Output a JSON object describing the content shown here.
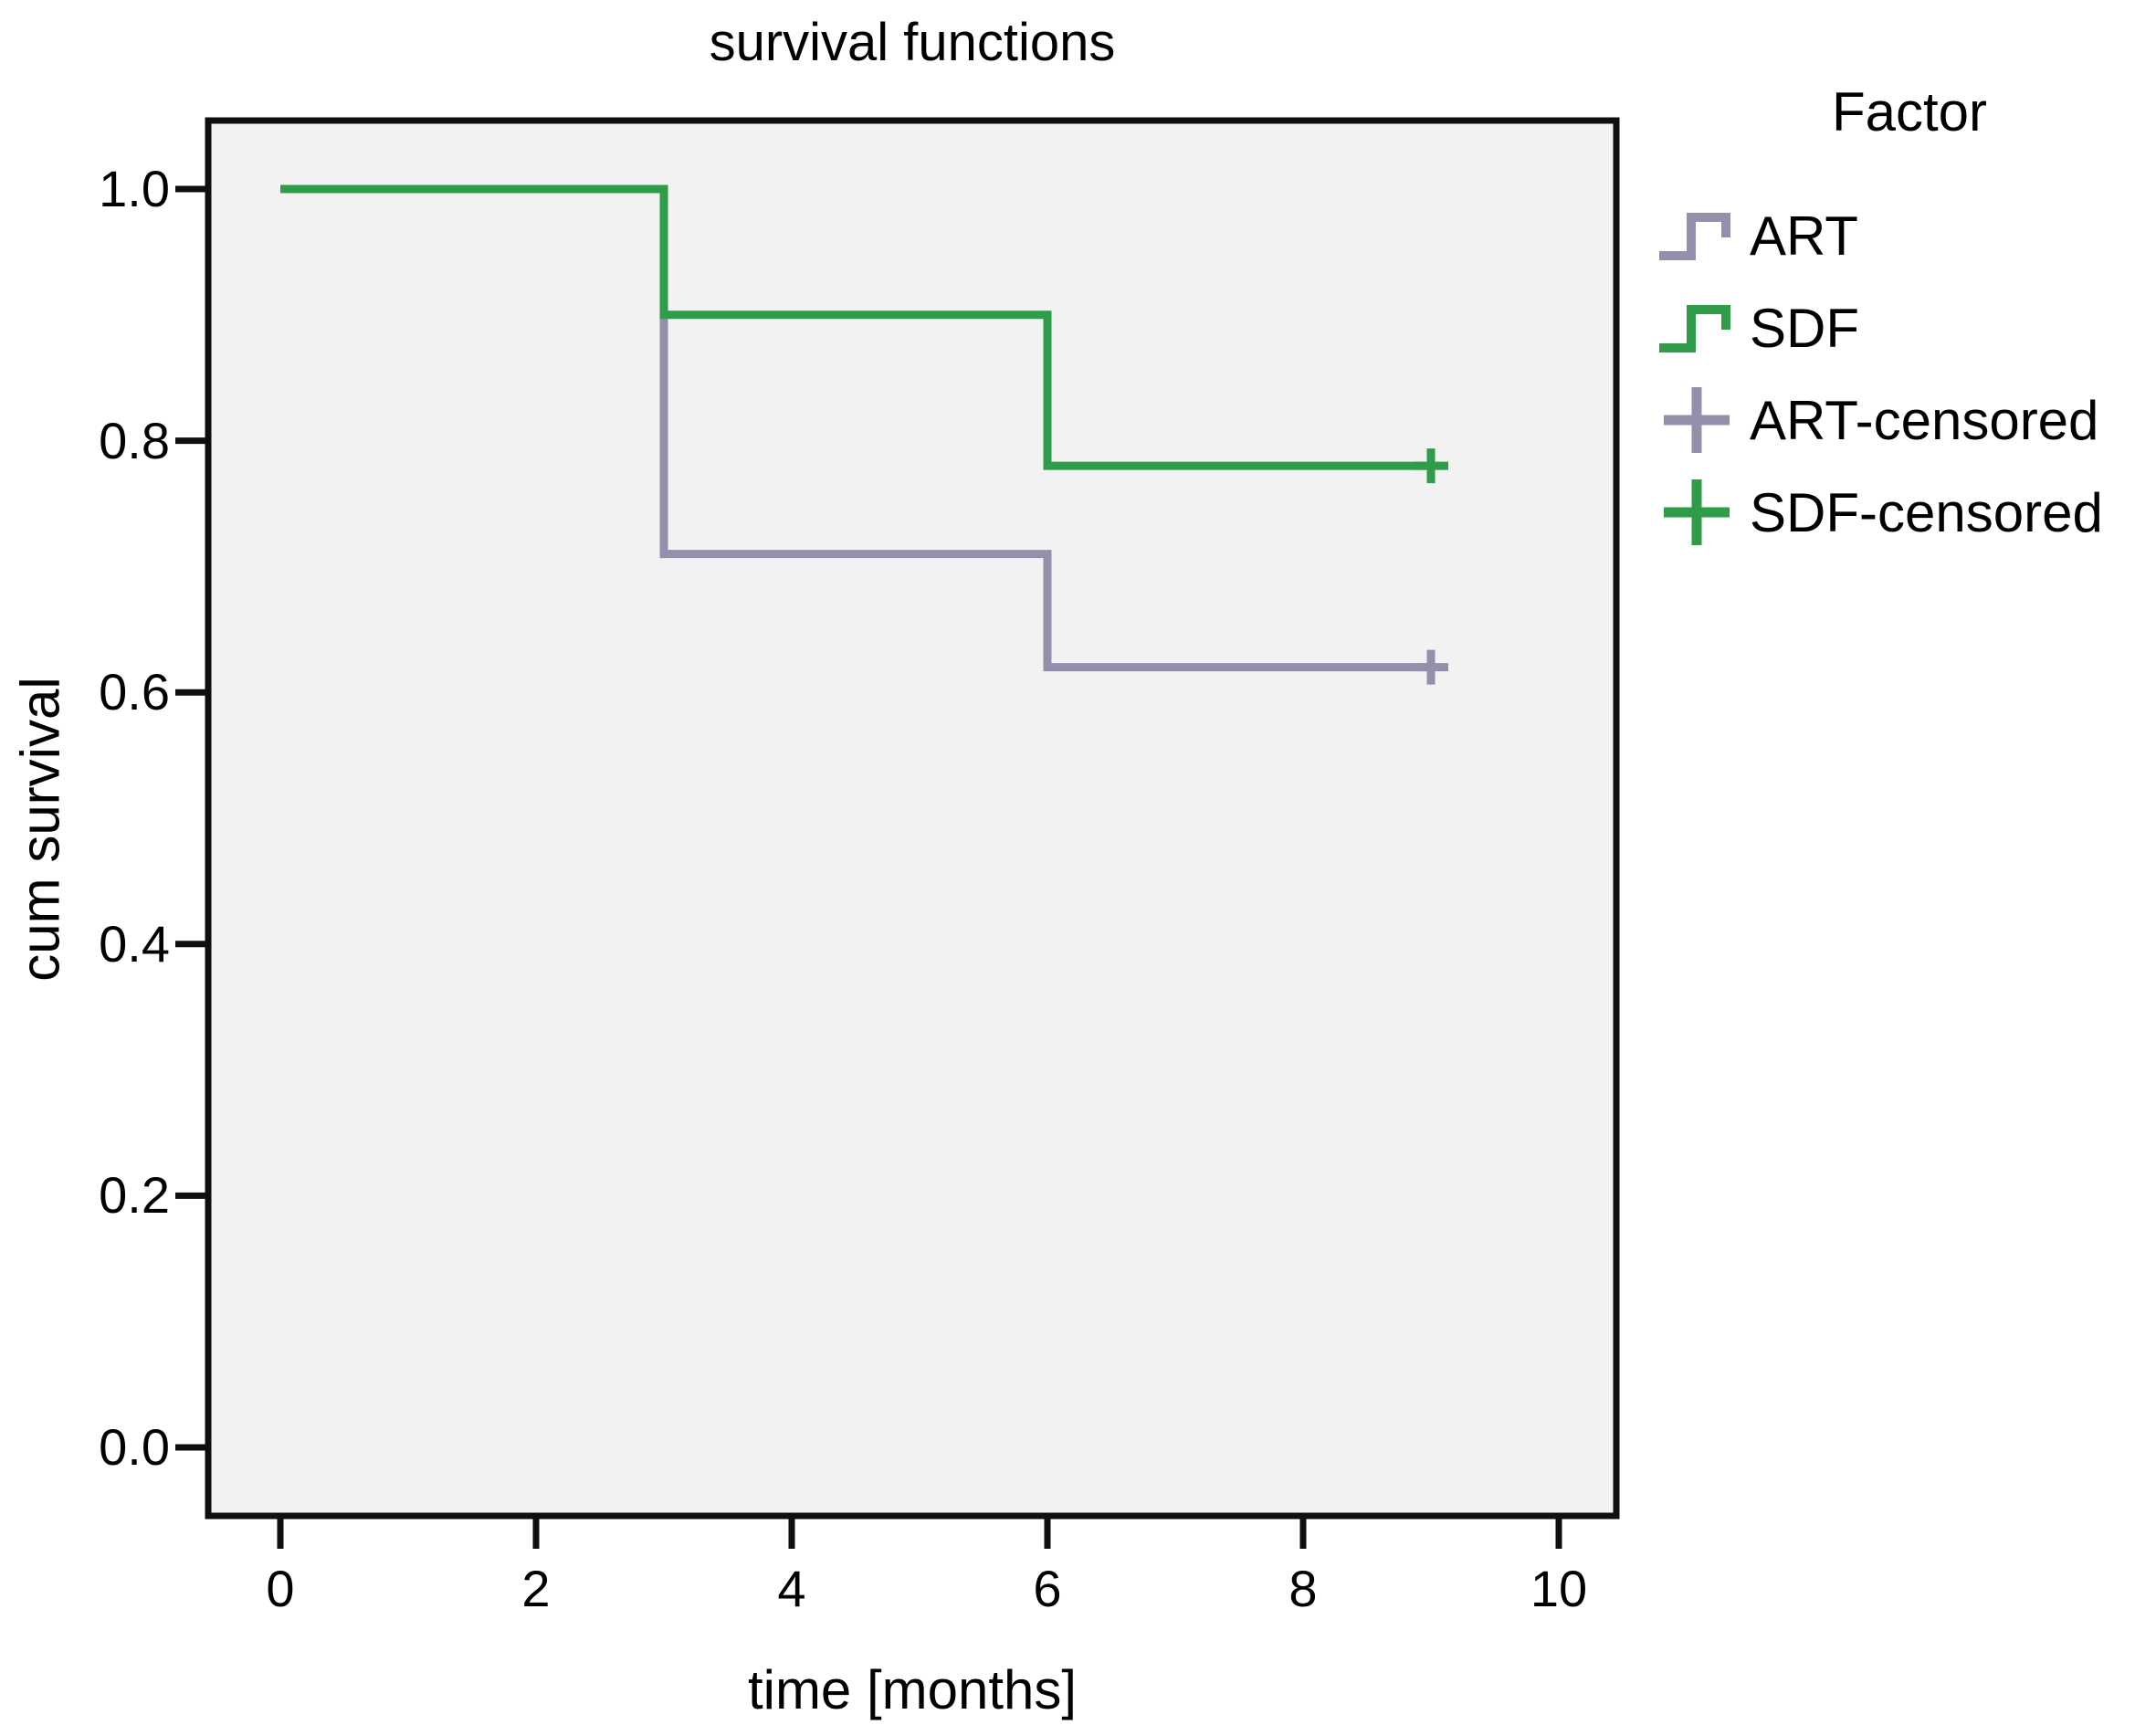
{
  "page": {
    "title": "survival functions"
  },
  "axes": {
    "x": {
      "label": "time [months]",
      "ticks": [
        "0",
        "2",
        "4",
        "6",
        "8",
        "10"
      ],
      "tick_values": [
        0,
        2,
        4,
        6,
        8,
        10
      ],
      "range": [
        0,
        10
      ]
    },
    "y": {
      "label": "cum survival",
      "ticks": [
        "1.0",
        "0.8",
        "0.6",
        "0.4",
        "0.2",
        "0.0"
      ],
      "tick_values": [
        1.0,
        0.8,
        0.6,
        0.4,
        0.2,
        0.0
      ],
      "range": [
        0,
        1
      ]
    }
  },
  "legend": {
    "title": "Factor",
    "items": [
      {
        "label": "ART",
        "symbol": "step",
        "color": "#9490AB"
      },
      {
        "label": "SDF",
        "symbol": "step",
        "color": "#2E9C49"
      },
      {
        "label": "ART-censored",
        "symbol": "plus",
        "color": "#9490AB"
      },
      {
        "label": "SDF-censored",
        "symbol": "plus",
        "color": "#2E9C49"
      }
    ]
  },
  "colors": {
    "art": "#9490AB",
    "sdf": "#2E9C49",
    "plot_background": "#F2F2F2",
    "frame": "#0F0F0F",
    "text": "#000000"
  },
  "chart_data": {
    "type": "line",
    "subtype": "kaplan-meier-step",
    "title": "survival functions",
    "xlabel": "time [months]",
    "ylabel": "cum survival",
    "xlim": [
      0,
      10
    ],
    "ylim": [
      0,
      1
    ],
    "grid": false,
    "legend_position": "right",
    "legend_title": "Factor",
    "plot_bg": "#F2F2F2",
    "series": [
      {
        "name": "ART",
        "color": "#9490AB",
        "steps": [
          [
            0,
            1.0
          ],
          [
            3,
            0.71
          ],
          [
            6,
            0.62
          ]
        ],
        "end_x": 9,
        "censored": [
          [
            9,
            0.62
          ]
        ]
      },
      {
        "name": "SDF",
        "color": "#2E9C49",
        "steps": [
          [
            0,
            1.0
          ],
          [
            3,
            0.9
          ],
          [
            6,
            0.78
          ]
        ],
        "end_x": 9,
        "censored": [
          [
            9,
            0.78
          ]
        ]
      }
    ]
  }
}
